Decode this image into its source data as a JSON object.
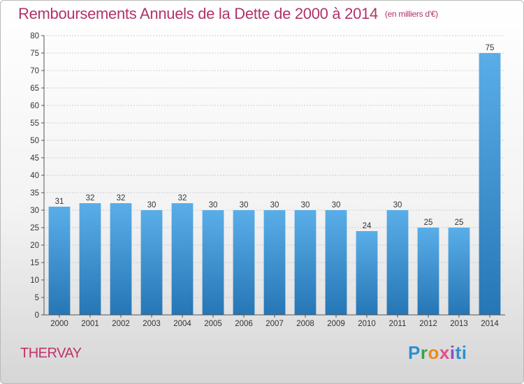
{
  "header": {
    "title": "Remboursements Annuels de la Dette de 2000 à 2014",
    "subtitle": "(en milliers d'€)"
  },
  "footer": {
    "city": "THERVAY",
    "logo": "Proxiti"
  },
  "colors": {
    "title": "#b0336a",
    "bar_top": "#5aaee8",
    "bar_bottom": "#2676b5",
    "grid": "#cccccc",
    "axis": "#555555"
  },
  "chart_data": {
    "type": "bar",
    "title": "Remboursements Annuels de la Dette de 2000 à 2014",
    "subtitle": "(en milliers d'€)",
    "xlabel": "",
    "ylabel": "",
    "categories": [
      "2000",
      "2001",
      "2002",
      "2003",
      "2004",
      "2005",
      "2006",
      "2007",
      "2008",
      "2009",
      "2010",
      "2011",
      "2012",
      "2013",
      "2014"
    ],
    "values": [
      31,
      32,
      32,
      30,
      32,
      30,
      30,
      30,
      30,
      30,
      24,
      30,
      25,
      25,
      75
    ],
    "ylim": [
      0,
      80
    ],
    "ytick_step": 5,
    "grid": true,
    "grid_axis": "y",
    "legend": "none",
    "data_labels": true
  }
}
